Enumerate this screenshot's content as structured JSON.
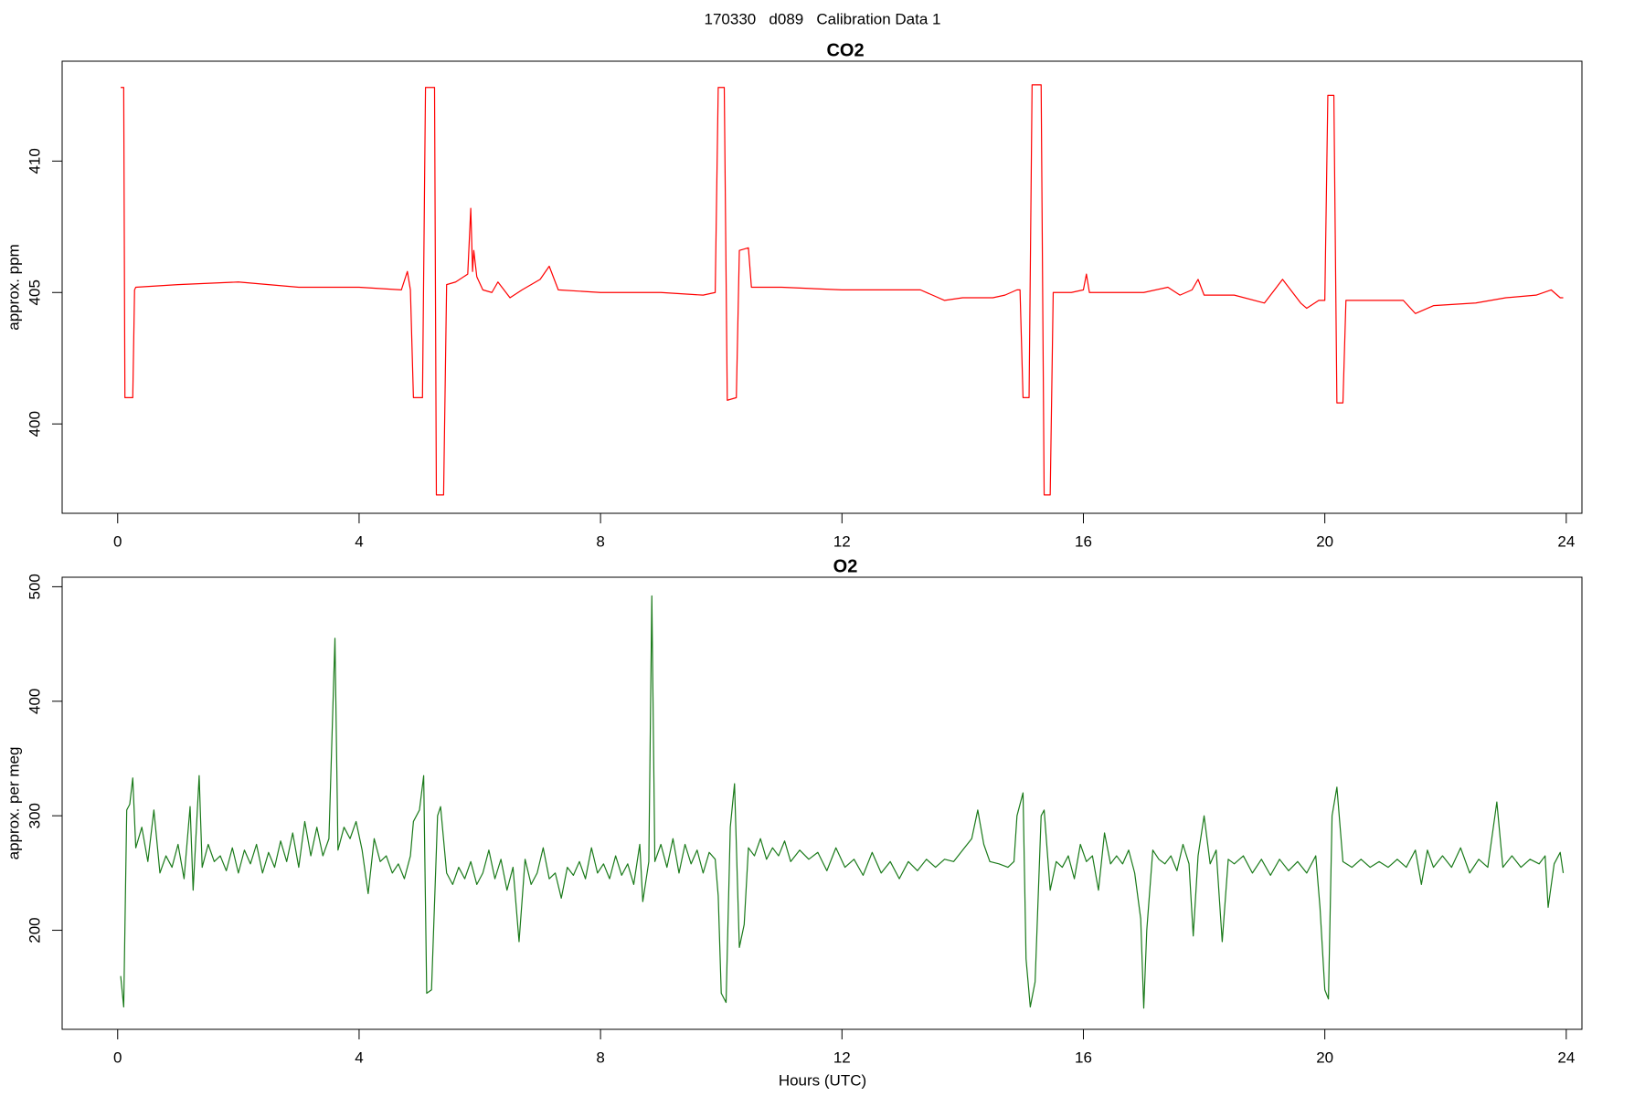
{
  "title": "170330   d089   Calibration Data 1",
  "chart_data": [
    {
      "type": "line",
      "title": "CO2",
      "ylabel": "approx. ppm",
      "color": "#ff0000",
      "xlim": [
        -0.92,
        24.26
      ],
      "xticks": [
        0,
        4,
        8,
        12,
        16,
        20,
        24
      ],
      "ylim": [
        396.6,
        413.8
      ],
      "yticks": [
        400,
        405,
        410
      ],
      "x": [
        0.05,
        0.1,
        0.12,
        0.25,
        0.28,
        0.3,
        1,
        2,
        3,
        4,
        4.7,
        4.8,
        4.85,
        4.9,
        5.05,
        5.1,
        5.25,
        5.28,
        5.4,
        5.45,
        5.6,
        5.8,
        5.85,
        5.88,
        5.9,
        5.95,
        6.05,
        6.2,
        6.3,
        6.5,
        6.7,
        7,
        7.15,
        7.3,
        8,
        9,
        9.7,
        9.9,
        9.95,
        10.05,
        10.1,
        10.25,
        10.3,
        10.45,
        10.5,
        11,
        12,
        13,
        13.3,
        13.5,
        13.7,
        14,
        14.5,
        14.7,
        14.9,
        14.95,
        15,
        15.1,
        15.15,
        15.3,
        15.35,
        15.45,
        15.5,
        15.8,
        16,
        16.05,
        16.1,
        16.5,
        17,
        17.4,
        17.6,
        17.8,
        17.9,
        18,
        18.5,
        19,
        19.3,
        19.6,
        19.7,
        19.9,
        20,
        20.05,
        20.15,
        20.2,
        20.3,
        20.35,
        21,
        21.3,
        21.5,
        21.8,
        22.5,
        23,
        23.5,
        23.75,
        23.9,
        23.95
      ],
      "values": [
        412.8,
        412.8,
        401,
        401,
        405.1,
        405.2,
        405.3,
        405.4,
        405.2,
        405.2,
        405.1,
        405.8,
        405.1,
        401,
        401,
        412.8,
        412.8,
        397.3,
        397.3,
        405.3,
        405.4,
        405.7,
        408.2,
        405.8,
        406.6,
        405.6,
        405.1,
        405,
        405.4,
        404.8,
        405.1,
        405.5,
        406,
        405.1,
        405,
        405,
        404.9,
        405,
        412.8,
        412.8,
        400.9,
        401,
        406.6,
        406.7,
        405.2,
        405.2,
        405.1,
        405.1,
        405.1,
        404.9,
        404.7,
        404.8,
        404.8,
        404.9,
        405.1,
        405.1,
        401,
        401,
        412.9,
        412.9,
        397.3,
        397.3,
        405,
        405,
        405.1,
        405.7,
        405,
        405,
        405,
        405.2,
        404.9,
        405.1,
        405.5,
        404.9,
        404.9,
        404.6,
        405.5,
        404.6,
        404.4,
        404.7,
        404.7,
        412.5,
        412.5,
        400.8,
        400.8,
        404.7,
        404.7,
        404.7,
        404.2,
        404.5,
        404.6,
        404.8,
        404.9,
        405.1,
        404.8,
        404.8
      ]
    },
    {
      "type": "line",
      "title": "O2",
      "ylabel": "approx. per meg",
      "xlabel": "Hours (UTC)",
      "color": "#1a7a1a",
      "xlim": [
        -0.92,
        24.26
      ],
      "xticks": [
        0,
        4,
        8,
        12,
        16,
        20,
        24
      ],
      "ylim": [
        113.5,
        508.3
      ],
      "yticks": [
        200,
        300,
        400,
        500
      ],
      "x": [
        0.05,
        0.1,
        0.15,
        0.2,
        0.25,
        0.3,
        0.4,
        0.5,
        0.6,
        0.7,
        0.8,
        0.9,
        1.0,
        1.1,
        1.2,
        1.25,
        1.35,
        1.4,
        1.5,
        1.6,
        1.7,
        1.8,
        1.9,
        2.0,
        2.1,
        2.2,
        2.3,
        2.4,
        2.5,
        2.6,
        2.7,
        2.8,
        2.9,
        3.0,
        3.1,
        3.2,
        3.3,
        3.4,
        3.5,
        3.6,
        3.65,
        3.75,
        3.85,
        3.95,
        4.05,
        4.15,
        4.25,
        4.35,
        4.45,
        4.55,
        4.65,
        4.75,
        4.85,
        4.9,
        5.0,
        5.07,
        5.12,
        5.2,
        5.3,
        5.35,
        5.45,
        5.55,
        5.65,
        5.75,
        5.85,
        5.95,
        6.05,
        6.15,
        6.25,
        6.35,
        6.45,
        6.55,
        6.65,
        6.75,
        6.85,
        6.95,
        7.05,
        7.15,
        7.25,
        7.35,
        7.45,
        7.55,
        7.65,
        7.75,
        7.85,
        7.95,
        8.05,
        8.15,
        8.25,
        8.35,
        8.45,
        8.55,
        8.65,
        8.7,
        8.8,
        8.85,
        8.9,
        9.0,
        9.1,
        9.2,
        9.3,
        9.4,
        9.5,
        9.6,
        9.7,
        9.8,
        9.9,
        9.95,
        10.0,
        10.08,
        10.15,
        10.22,
        10.3,
        10.38,
        10.45,
        10.55,
        10.65,
        10.75,
        10.85,
        10.95,
        11.05,
        11.15,
        11.3,
        11.45,
        11.6,
        11.75,
        11.9,
        12.05,
        12.2,
        12.35,
        12.5,
        12.65,
        12.8,
        12.95,
        13.1,
        13.25,
        13.4,
        13.55,
        13.7,
        13.85,
        14.0,
        14.15,
        14.25,
        14.35,
        14.45,
        14.6,
        14.75,
        14.85,
        14.9,
        15.0,
        15.05,
        15.12,
        15.2,
        15.3,
        15.35,
        15.45,
        15.55,
        15.65,
        15.75,
        15.85,
        15.95,
        16.05,
        16.15,
        16.25,
        16.35,
        16.45,
        16.55,
        16.65,
        16.75,
        16.85,
        16.95,
        17.0,
        17.05,
        17.15,
        17.25,
        17.35,
        17.45,
        17.55,
        17.65,
        17.75,
        17.82,
        17.9,
        18.0,
        18.1,
        18.2,
        18.3,
        18.4,
        18.5,
        18.65,
        18.8,
        18.95,
        19.1,
        19.25,
        19.4,
        19.55,
        19.7,
        19.85,
        19.92,
        20.0,
        20.06,
        20.12,
        20.2,
        20.3,
        20.45,
        20.6,
        20.75,
        20.9,
        21.05,
        21.2,
        21.35,
        21.5,
        21.6,
        21.7,
        21.8,
        21.95,
        22.1,
        22.25,
        22.4,
        22.55,
        22.7,
        22.85,
        22.95,
        23.1,
        23.25,
        23.4,
        23.55,
        23.65,
        23.7,
        23.8,
        23.9,
        23.95
      ],
      "values": [
        160,
        133,
        305,
        310,
        333,
        272,
        290,
        260,
        305,
        250,
        265,
        255,
        275,
        245,
        308,
        235,
        335,
        255,
        275,
        260,
        265,
        252,
        272,
        250,
        270,
        258,
        275,
        250,
        268,
        255,
        278,
        260,
        285,
        255,
        295,
        265,
        290,
        265,
        280,
        455,
        270,
        290,
        280,
        295,
        270,
        232,
        280,
        260,
        265,
        250,
        258,
        245,
        265,
        295,
        305,
        335,
        145,
        148,
        300,
        308,
        250,
        240,
        255,
        245,
        260,
        240,
        250,
        270,
        245,
        262,
        235,
        255,
        190,
        262,
        240,
        250,
        272,
        245,
        250,
        228,
        255,
        248,
        260,
        245,
        272,
        250,
        258,
        245,
        265,
        248,
        258,
        240,
        275,
        225,
        260,
        492,
        260,
        275,
        255,
        280,
        250,
        275,
        258,
        270,
        250,
        268,
        262,
        230,
        145,
        137,
        290,
        328,
        185,
        205,
        272,
        265,
        280,
        262,
        272,
        265,
        278,
        260,
        270,
        262,
        268,
        252,
        272,
        255,
        262,
        248,
        268,
        250,
        260,
        245,
        260,
        252,
        262,
        255,
        262,
        260,
        270,
        280,
        305,
        275,
        260,
        258,
        255,
        260,
        300,
        320,
        175,
        133,
        155,
        300,
        305,
        235,
        260,
        255,
        265,
        245,
        275,
        260,
        265,
        235,
        285,
        258,
        265,
        258,
        270,
        250,
        210,
        132,
        200,
        270,
        262,
        258,
        265,
        252,
        275,
        258,
        195,
        265,
        300,
        258,
        270,
        190,
        262,
        258,
        265,
        250,
        262,
        248,
        262,
        252,
        260,
        250,
        265,
        220,
        148,
        140,
        300,
        325,
        260,
        255,
        262,
        255,
        260,
        255,
        262,
        255,
        270,
        240,
        270,
        255,
        265,
        255,
        272,
        250,
        262,
        255,
        312,
        255,
        265,
        255,
        262,
        258,
        265,
        220,
        258,
        268,
        250
      ]
    }
  ]
}
